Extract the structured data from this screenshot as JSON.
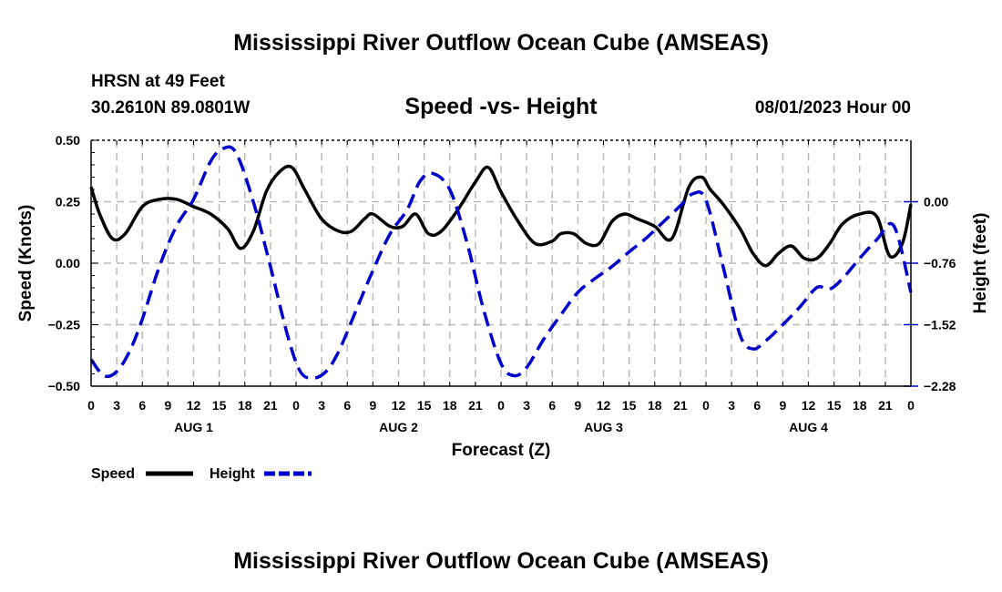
{
  "page": {
    "title_top": "Mississippi River Outflow Ocean Cube (AMSEAS)",
    "title_bottom": "Mississippi River Outflow Ocean Cube (AMSEAS)",
    "station": "HRSN at 49 Feet",
    "coords": "30.2610N  89.0801W",
    "datetime": "08/01/2023 Hour 00"
  },
  "chart_data": {
    "type": "line",
    "title": "Speed -vs- Height",
    "xlabel": "Forecast (Z)",
    "ylabel_left": "Speed (Knots)",
    "ylabel_right": "Height (feet)",
    "x_range_hours": [
      0,
      96
    ],
    "x_tick_labels": [
      "0",
      "3",
      "6",
      "9",
      "12",
      "15",
      "18",
      "21",
      "0",
      "3",
      "6",
      "9",
      "12",
      "15",
      "18",
      "21",
      "0",
      "3",
      "6",
      "9",
      "12",
      "15",
      "18",
      "21",
      "0",
      "3",
      "6",
      "9",
      "12",
      "15",
      "18",
      "21",
      "0"
    ],
    "day_labels": [
      {
        "label": "AUG 1",
        "center_hour": 12
      },
      {
        "label": "AUG 2",
        "center_hour": 36
      },
      {
        "label": "AUG 3",
        "center_hour": 60
      },
      {
        "label": "AUG 4",
        "center_hour": 84
      }
    ],
    "ylim_left": [
      -0.5,
      0.5
    ],
    "y_ticks_left": [
      "0.50",
      "0.25",
      "0.00",
      "−0.25",
      "−0.50"
    ],
    "ylim_right": [
      -2.28,
      0.76
    ],
    "y_ticks_right": [
      "0.00",
      "−0.76",
      "−1.52",
      "−2.28"
    ],
    "grid": true,
    "legend_position": "bottom-left",
    "series": [
      {
        "name": "Speed",
        "axis": "left",
        "color": "#000000",
        "style": "solid",
        "x": [
          0,
          1,
          2.5,
          4,
          6,
          8,
          10,
          12,
          14,
          16,
          17.5,
          19,
          20.5,
          22,
          23.5,
          25,
          27,
          29,
          30.5,
          32,
          33,
          35,
          36.5,
          38,
          39.5,
          41,
          43,
          45,
          46.5,
          48,
          50,
          52,
          54,
          55,
          56.5,
          58,
          59.5,
          61,
          62.5,
          64,
          66,
          68,
          70,
          71.5,
          72.5,
          74,
          76,
          77.5,
          79,
          80.5,
          82,
          83.5,
          85,
          86.5,
          88,
          90,
          92,
          93.5,
          95,
          96
        ],
        "values": [
          0.31,
          0.2,
          0.1,
          0.12,
          0.23,
          0.26,
          0.26,
          0.23,
          0.2,
          0.14,
          0.06,
          0.13,
          0.29,
          0.37,
          0.39,
          0.3,
          0.18,
          0.13,
          0.13,
          0.18,
          0.2,
          0.15,
          0.15,
          0.2,
          0.12,
          0.13,
          0.22,
          0.33,
          0.39,
          0.29,
          0.17,
          0.08,
          0.09,
          0.12,
          0.12,
          0.08,
          0.08,
          0.17,
          0.2,
          0.18,
          0.15,
          0.1,
          0.31,
          0.35,
          0.3,
          0.24,
          0.14,
          0.04,
          -0.01,
          0.04,
          0.07,
          0.02,
          0.02,
          0.08,
          0.16,
          0.2,
          0.19,
          0.03,
          0.08,
          0.24
        ]
      },
      {
        "name": "Height",
        "axis": "right",
        "color": "#0000cc",
        "style": "dashed",
        "x": [
          0,
          1.5,
          3,
          4.5,
          6,
          8,
          10,
          12,
          14,
          15.5,
          17,
          19,
          21,
          23,
          24.5,
          26,
          27.5,
          29,
          31,
          33,
          35,
          37,
          38.5,
          40,
          42,
          44,
          46,
          48,
          49.5,
          51,
          53,
          55,
          57,
          59,
          61,
          63,
          65,
          67,
          69,
          70.5,
          72,
          74,
          76,
          77.5,
          79,
          81,
          83,
          85,
          86.5,
          88,
          90,
          92,
          94,
          96
        ],
        "values": [
          -1.95,
          -2.15,
          -2.1,
          -1.85,
          -1.45,
          -0.8,
          -0.3,
          0.03,
          0.5,
          0.66,
          0.6,
          0.0,
          -0.8,
          -1.65,
          -2.1,
          -2.18,
          -2.1,
          -1.85,
          -1.35,
          -0.85,
          -0.4,
          -0.1,
          0.25,
          0.35,
          0.15,
          -0.5,
          -1.35,
          -2.0,
          -2.15,
          -2.05,
          -1.7,
          -1.4,
          -1.12,
          -0.95,
          -0.8,
          -0.62,
          -0.45,
          -0.25,
          -0.05,
          0.1,
          0.02,
          -0.8,
          -1.65,
          -1.82,
          -1.72,
          -1.52,
          -1.3,
          -1.06,
          -1.08,
          -0.95,
          -0.7,
          -0.47,
          -0.3,
          -1.12
        ]
      }
    ]
  }
}
